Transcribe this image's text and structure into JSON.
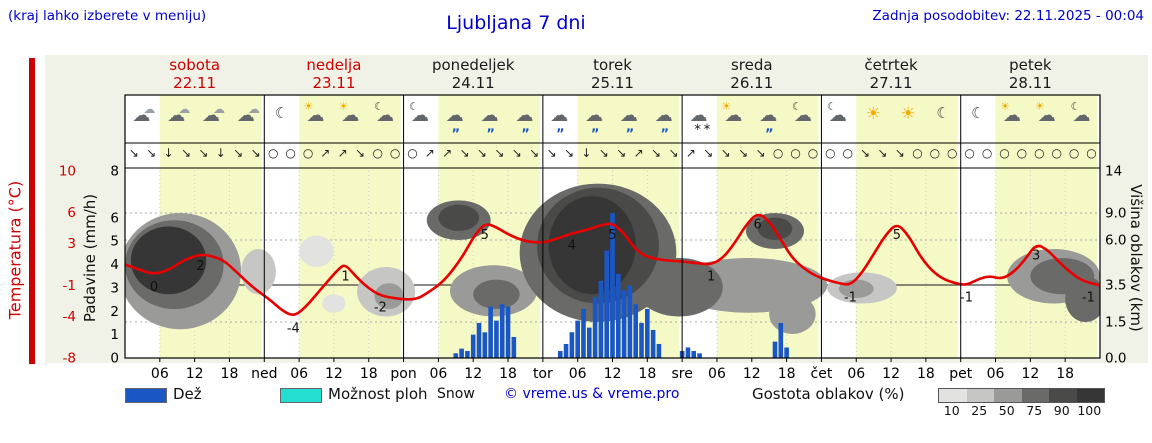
{
  "header": {
    "menu_hint": "(kraj lahko izberete v meniju)",
    "title": "Ljubljana 7 dni",
    "last_update": "Zadnja posodobitev: 22.11.2025 - 00:04"
  },
  "colors": {
    "link_blue": "#0000cc",
    "axis_red": "#cc0000",
    "temp_red": "#e60000",
    "rain_blue": "#1a56c4",
    "shower_cyan": "#25ded2",
    "day_band_yellow": "#f4f9c5",
    "figure_bg": "#f1f2e7"
  },
  "axes": {
    "temp_label": "Temperatura (°C)",
    "precip_label": "Padavine (mm/h)",
    "cloud_label": "Višina oblakov (km)",
    "temp_ticks": [
      10,
      6,
      3,
      -1,
      -4,
      -8
    ],
    "precip_ticks": [
      8,
      6,
      5,
      4,
      3,
      2,
      1,
      0
    ],
    "cloud_ticks": [
      "14",
      "9.0",
      "6.0",
      "3.5",
      "1.5",
      "0.0"
    ],
    "time_ticks": [
      "06",
      "12",
      "18"
    ]
  },
  "days": [
    {
      "name": "sobota",
      "date": "22.11",
      "abbr": "",
      "color": "#cc0000",
      "icons": [
        "cloud",
        "cloud",
        "cloud",
        "cloud"
      ],
      "wind": [
        "↘",
        "↘",
        "↓",
        "↘",
        "↘",
        "↓",
        "↘",
        "↘"
      ]
    },
    {
      "name": "nedelja",
      "date": "23.11",
      "abbr": "ned",
      "color": "#cc0000",
      "icons": [
        "moon",
        "sun-cloud",
        "sun-cloud",
        "moon-cloud"
      ],
      "wind": [
        "○",
        "○",
        "○",
        "↗",
        "↗",
        "↘",
        "○",
        "○"
      ]
    },
    {
      "name": "ponedeljek",
      "date": "24.11",
      "abbr": "pon",
      "color": "#1a1a1a",
      "icons": [
        "moon-cloud",
        "rain",
        "rain",
        "rain"
      ],
      "wind": [
        "○",
        "↗",
        "↗",
        "↘",
        "↘",
        "↘",
        "↘",
        "↘"
      ]
    },
    {
      "name": "torek",
      "date": "25.11",
      "abbr": "tor",
      "color": "#1a1a1a",
      "icons": [
        "rain",
        "rain",
        "rain",
        "rain"
      ],
      "wind": [
        "↘",
        "↘",
        "↓",
        "↘",
        "↘",
        "↗",
        "↘",
        "↘"
      ]
    },
    {
      "name": "sreda",
      "date": "26.11",
      "abbr": "sre",
      "color": "#1a1a1a",
      "icons": [
        "snow",
        "sun-cloud",
        "rain",
        "moon-cloud"
      ],
      "wind": [
        "↗",
        "↘",
        "↘",
        "↘",
        "↘",
        "○",
        "○",
        "○"
      ]
    },
    {
      "name": "četrtek",
      "date": "27.11",
      "abbr": "čet",
      "color": "#1a1a1a",
      "icons": [
        "moon-cloud",
        "sun",
        "sun",
        "moon"
      ],
      "wind": [
        "○",
        "○",
        "↘",
        "↘",
        "↘",
        "○",
        "○",
        "○"
      ]
    },
    {
      "name": "petek",
      "date": "28.11",
      "abbr": "pet",
      "color": "#1a1a1a",
      "icons": [
        "moon",
        "sun-cloud",
        "sun-cloud",
        "moon-cloud"
      ],
      "wind": [
        "○",
        "○",
        "○",
        "○",
        "○",
        "○",
        "○",
        "○"
      ]
    }
  ],
  "chart_data": {
    "type": "line",
    "subtype": "meteogram",
    "title": "Ljubljana 7 dni",
    "x_axis": {
      "unit": "hour",
      "range_hours": [
        0,
        168
      ],
      "day_starts": [
        0,
        24,
        48,
        72,
        96,
        120,
        144
      ],
      "tick_hours": [
        6,
        12,
        18
      ]
    },
    "daylight_band_hours": [
      6,
      17.5
    ],
    "temperature": {
      "unit": "°C",
      "axis_range": [
        -8,
        10
      ],
      "points": [
        [
          0,
          1
        ],
        [
          2,
          0.6
        ],
        [
          5,
          0
        ],
        [
          8,
          0.6
        ],
        [
          10,
          1.4
        ],
        [
          13,
          2
        ],
        [
          15,
          1.8
        ],
        [
          17,
          1.4
        ],
        [
          19,
          0.4
        ],
        [
          22,
          -1.2
        ],
        [
          25,
          -2.4
        ],
        [
          27,
          -3.4
        ],
        [
          29,
          -4
        ],
        [
          31,
          -3.2
        ],
        [
          34,
          -1.2
        ],
        [
          37,
          0.7
        ],
        [
          38,
          1
        ],
        [
          40,
          -0.3
        ],
        [
          42,
          -1.3
        ],
        [
          44,
          -2
        ],
        [
          47,
          -2.3
        ],
        [
          50,
          -2.4
        ],
        [
          52,
          -1.8
        ],
        [
          55,
          -0.6
        ],
        [
          58,
          1.6
        ],
        [
          60,
          3.6
        ],
        [
          62,
          5
        ],
        [
          64,
          4.6
        ],
        [
          66,
          3.9
        ],
        [
          69,
          3.2
        ],
        [
          72,
          3.1
        ],
        [
          74,
          3.4
        ],
        [
          77,
          4
        ],
        [
          80,
          4.4
        ],
        [
          82,
          4.8
        ],
        [
          84,
          5
        ],
        [
          86,
          4
        ],
        [
          88,
          2.4
        ],
        [
          90,
          1.7
        ],
        [
          93,
          1.4
        ],
        [
          96,
          1.3
        ],
        [
          99,
          1.1
        ],
        [
          101,
          1
        ],
        [
          103,
          1.6
        ],
        [
          105,
          3
        ],
        [
          107,
          4.8
        ],
        [
          109,
          6
        ],
        [
          111,
          5.2
        ],
        [
          113,
          3.4
        ],
        [
          115,
          1.6
        ],
        [
          117,
          0.6
        ],
        [
          119,
          -0.1
        ],
        [
          121,
          -0.5
        ],
        [
          123,
          -0.8
        ],
        [
          125,
          -1
        ],
        [
          127,
          0.2
        ],
        [
          129,
          2
        ],
        [
          131,
          3.8
        ],
        [
          133,
          5
        ],
        [
          135,
          3.8
        ],
        [
          137,
          1.8
        ],
        [
          139,
          0.4
        ],
        [
          141,
          -0.4
        ],
        [
          143,
          -0.8
        ],
        [
          145,
          -1
        ],
        [
          147,
          -0.4
        ],
        [
          149,
          -0.1
        ],
        [
          151,
          -0.4
        ],
        [
          153,
          0.2
        ],
        [
          155,
          1.4
        ],
        [
          157,
          3
        ],
        [
          159,
          2.4
        ],
        [
          161,
          1.2
        ],
        [
          163,
          0.2
        ],
        [
          165,
          -0.6
        ],
        [
          168,
          -1
        ]
      ]
    },
    "temperature_labels": [
      [
        5,
        0
      ],
      [
        13,
        2
      ],
      [
        29,
        -4
      ],
      [
        38,
        1
      ],
      [
        44,
        -2
      ],
      [
        62,
        5
      ],
      [
        77,
        4
      ],
      [
        84,
        5
      ],
      [
        101,
        1
      ],
      [
        109,
        6
      ],
      [
        125,
        -1
      ],
      [
        133,
        5
      ],
      [
        145,
        -1
      ],
      [
        157,
        3
      ],
      [
        166,
        -1
      ]
    ],
    "precipitation": {
      "unit": "mm/h",
      "axis_range": [
        0,
        8
      ],
      "bars": [
        [
          57,
          0.2
        ],
        [
          58,
          0.4
        ],
        [
          59,
          0.3
        ],
        [
          60,
          1
        ],
        [
          61,
          1.5
        ],
        [
          62,
          1.1
        ],
        [
          63,
          2.2
        ],
        [
          64,
          1.6
        ],
        [
          65,
          2.3
        ],
        [
          66,
          2.2
        ],
        [
          67,
          0.9
        ],
        [
          75,
          0.3
        ],
        [
          76,
          0.6
        ],
        [
          77,
          1.1
        ],
        [
          78,
          1.6
        ],
        [
          79,
          2.1
        ],
        [
          80,
          1.3
        ],
        [
          81,
          2.6
        ],
        [
          82,
          3.3
        ],
        [
          83,
          4.6
        ],
        [
          84,
          6.2
        ],
        [
          85,
          3.6
        ],
        [
          86,
          2.9
        ],
        [
          87,
          3.1
        ],
        [
          88,
          2.3
        ],
        [
          89,
          1.5
        ],
        [
          90,
          2.1
        ],
        [
          91,
          1.2
        ],
        [
          92,
          0.6
        ],
        [
          96,
          0.3
        ],
        [
          97,
          0.45
        ],
        [
          98,
          0.3
        ],
        [
          99,
          0.2
        ],
        [
          112,
          0.7
        ],
        [
          113,
          1.5
        ],
        [
          114,
          0.45
        ]
      ]
    },
    "clouds": {
      "unit": "km",
      "axis_ticks_km": [
        0,
        1.5,
        3.5,
        6,
        9,
        14
      ],
      "regions": [
        [
          -1,
          20,
          1.2,
          9,
          50
        ],
        [
          0,
          17,
          2.2,
          8.2,
          75
        ],
        [
          1,
          14,
          3,
          7.5,
          100
        ],
        [
          20,
          26,
          3,
          5.5,
          25
        ],
        [
          30,
          36,
          4.5,
          6.5,
          10
        ],
        [
          34,
          38,
          2,
          3,
          10
        ],
        [
          40,
          50,
          1.8,
          4.5,
          25
        ],
        [
          43,
          48,
          2.2,
          3.6,
          50
        ],
        [
          52,
          63,
          6,
          10.5,
          75
        ],
        [
          54,
          61,
          7,
          10,
          90
        ],
        [
          56,
          71,
          1.8,
          4.6,
          50
        ],
        [
          60,
          68,
          2.2,
          3.8,
          75
        ],
        [
          68,
          95,
          1.5,
          12.5,
          75
        ],
        [
          71,
          92,
          2.5,
          12,
          90
        ],
        [
          73,
          88,
          3,
          11,
          100
        ],
        [
          88,
          103,
          1.8,
          5,
          75
        ],
        [
          94,
          121,
          2,
          5,
          50
        ],
        [
          107,
          117,
          5.5,
          9,
          75
        ],
        [
          109,
          115,
          6,
          8.5,
          90
        ],
        [
          111,
          119,
          1,
          3,
          50
        ],
        [
          121,
          133,
          2.5,
          4.2,
          25
        ],
        [
          123,
          129,
          2.8,
          3.8,
          50
        ],
        [
          152,
          168,
          2.5,
          5.5,
          50
        ],
        [
          156,
          167,
          3,
          5,
          75
        ],
        [
          162,
          169,
          1.5,
          4,
          75
        ]
      ]
    }
  },
  "legend": {
    "rain_label": "Dež",
    "shower_label": "Možnost ploh",
    "snow_label": "Snow",
    "copyright": "© vreme.us & vreme.pro",
    "cloud_density_label": "Gostota oblakov (%)",
    "cloud_density_ticks": [
      "10",
      "25",
      "50",
      "75",
      "90",
      "100"
    ],
    "cloud_density_colors": [
      "#e2e2e0",
      "#c6c6c4",
      "#9a9a98",
      "#6a6a68",
      "#4a4a48",
      "#363636"
    ]
  }
}
